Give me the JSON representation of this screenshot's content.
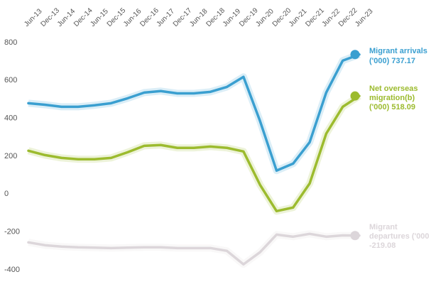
{
  "chart_data": {
    "type": "line",
    "categories": [
      "Jun-13",
      "Dec-13",
      "Jun-14",
      "Dec-14",
      "Jun-15",
      "Dec-15",
      "Jun-16",
      "Dec-16",
      "Jun-17",
      "Dec-17",
      "Jun-18",
      "Dec-18",
      "Jun-19",
      "Dec-19",
      "Jun-20",
      "Dec-20",
      "Jun-21",
      "Dec-21",
      "Jun-22",
      "Dec-22",
      "Jun-23"
    ],
    "ylim": [
      -400,
      800
    ],
    "yticks": [
      -400,
      -200,
      0,
      200,
      400,
      600,
      800
    ],
    "grid": false,
    "series": [
      {
        "color": "#3a9fd0",
        "label": [
          "Migrant arrivals",
          "('000) 737.17"
        ],
        "values": [
          480,
          472,
          461,
          461,
          469,
          480,
          506,
          536,
          544,
          532,
          532,
          540,
          566,
          619,
          386,
          124,
          161,
          274,
          536,
          705,
          737.17
        ]
      },
      {
        "color": "#9cbb2e",
        "label": [
          "Net overseas",
          "migration(b)",
          "('000) 518.09"
        ],
        "values": [
          229,
          206,
          191,
          184,
          184,
          191,
          221,
          255,
          259,
          244,
          244,
          251,
          244,
          225,
          49,
          -90,
          -71,
          56,
          319,
          461,
          518.09
        ]
      },
      {
        "color": "#dcd6da",
        "label": [
          "Migrant",
          "departures ('000",
          "-219.08"
        ],
        "values": [
          -255,
          -270,
          -277,
          -281,
          -283,
          -285,
          -283,
          -281,
          -281,
          -285,
          -285,
          -285,
          -300,
          -371,
          -307,
          -214,
          -225,
          -210,
          -225,
          -218,
          -219.08
        ]
      }
    ]
  }
}
